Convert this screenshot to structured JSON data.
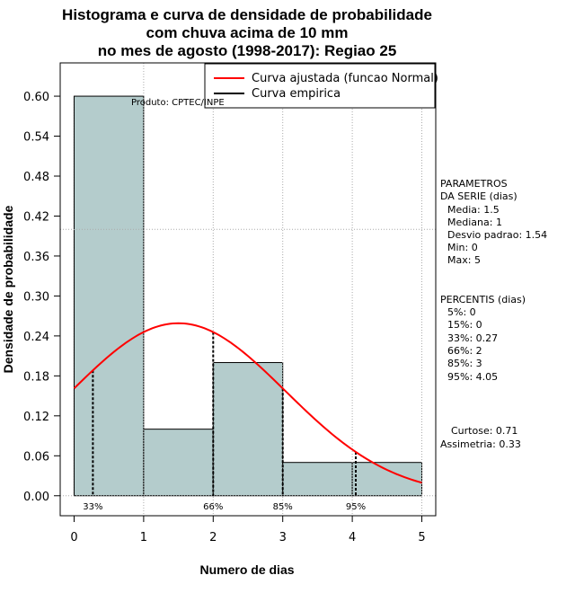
{
  "chart_data": {
    "type": "bar",
    "title_lines": [
      "Histograma e curva de densidade de probabilidade",
      "com chuva acima de 10 mm",
      "no mes de agosto (1998-2017): Regiao 25"
    ],
    "xlabel": "Numero de dias",
    "ylabel": "Densidade de probabilidade",
    "xlim": [
      -0.2,
      5.2
    ],
    "ylim": [
      -0.03,
      0.65
    ],
    "x_ticks": [
      0,
      1,
      2,
      3,
      4,
      5
    ],
    "y_ticks": [
      0.0,
      0.06,
      0.12,
      0.18,
      0.24,
      0.3,
      0.36,
      0.42,
      0.48,
      0.54,
      0.6
    ],
    "y_tick_labels": [
      "0.00",
      "0.06",
      "0.12",
      "0.18",
      "0.24",
      "0.30",
      "0.36",
      "0.42",
      "0.48",
      "0.54",
      "0.60"
    ],
    "bins": [
      {
        "start": 0,
        "end": 1,
        "density": 0.6
      },
      {
        "start": 1,
        "end": 2,
        "density": 0.1
      },
      {
        "start": 2,
        "end": 3,
        "density": 0.2
      },
      {
        "start": 3,
        "end": 4,
        "density": 0.05
      },
      {
        "start": 4,
        "end": 5,
        "density": 0.05
      }
    ],
    "bar_color": "#b4cccc",
    "curve_color": "#ff0000",
    "normal_fit": {
      "mean": 1.5,
      "sd": 1.54,
      "x_range": [
        0,
        5
      ]
    },
    "percentile_lines": [
      {
        "x": 0.27,
        "label": "33%"
      },
      {
        "x": 2,
        "label": "66%"
      },
      {
        "x": 3,
        "label": "85%"
      },
      {
        "x": 4.05,
        "label": "95%"
      }
    ],
    "h_ref_line": 0.4,
    "v_ref_lines": [
      1,
      2,
      3,
      4,
      5
    ],
    "legend": [
      {
        "label": "Curva ajustada (funcao Normal)",
        "color": "#ff0000"
      },
      {
        "label": "Curva empirica",
        "color": "#000000"
      }
    ],
    "product_label": "Produto: CPTEC/INPE"
  },
  "side_panel": {
    "params_title_1": "PARAMETROS",
    "params_title_2": "DA SERIE (dias)",
    "media": "Media: 1.5",
    "mediana": "Mediana: 1",
    "desvio": "Desvio padrao: 1.54",
    "min": "Min: 0",
    "max": "Max: 5",
    "percentis_title": "PERCENTIS (dias)",
    "p5": "5%: 0",
    "p15": "15%: 0",
    "p33": "33%: 0.27",
    "p66": "66%: 2",
    "p85": "85%: 3",
    "p95": "95%: 4.05",
    "curtose": "Curtose: 0.71",
    "assimetria": "Assimetria: 0.33"
  }
}
